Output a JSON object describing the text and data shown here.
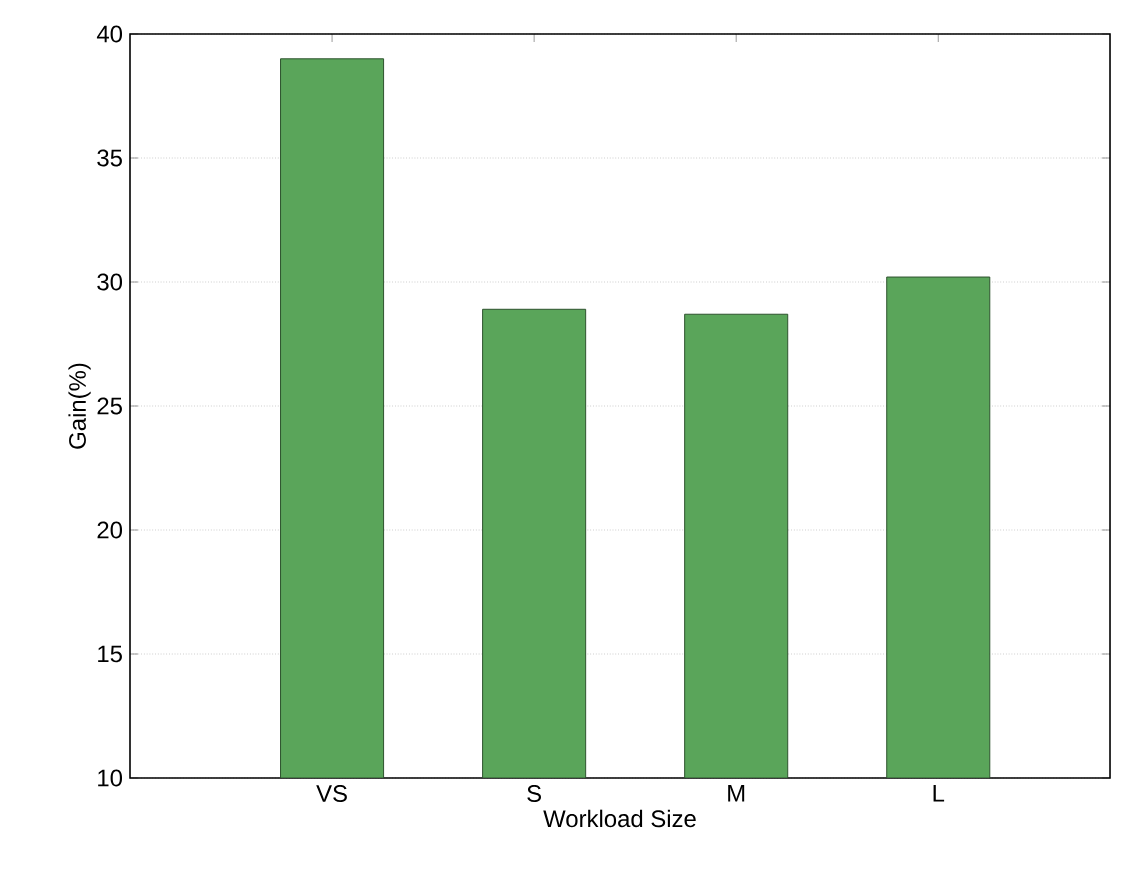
{
  "chart_data": {
    "type": "bar",
    "xlabel": "Workload Size",
    "ylabel": "Gain(%)",
    "categories": [
      "VS",
      "S",
      "M",
      "L"
    ],
    "values": [
      39.0,
      28.9,
      28.7,
      30.2
    ],
    "color": "#5aa55a",
    "ylim": [
      10,
      40
    ],
    "yticks": [
      10,
      15,
      20,
      25,
      30,
      35,
      40
    ],
    "grid": "y"
  }
}
